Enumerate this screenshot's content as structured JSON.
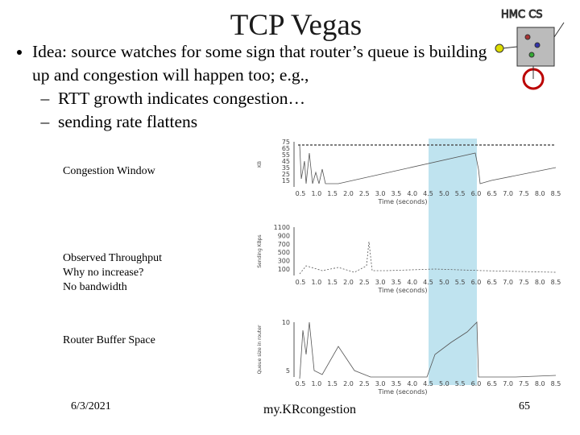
{
  "header": {
    "title": "TCP Vegas"
  },
  "bullets": [
    {
      "text": "Idea: source watches for some sign that router’s queue is building up and congestion will happen too; e.g.,",
      "sub": [
        "RTT growth indicates congestion…",
        "sending rate flattens"
      ]
    }
  ],
  "time_axis": {
    "label": "Time (seconds)",
    "ticks": [
      "0.5",
      "1.0",
      "1.5",
      "2.0",
      "2.5",
      "3.0",
      "3.5",
      "4.0",
      "4.5",
      "5.0",
      "5.5",
      "6.0",
      "6.5",
      "7.0",
      "7.5",
      "8.0",
      "8.5"
    ]
  },
  "panels": [
    {
      "label": [
        "Congestion Window"
      ],
      "y_axis": "KB",
      "yticks": [
        "75",
        "65",
        "55",
        "45",
        "35",
        "25",
        "15"
      ]
    },
    {
      "label": [
        "Observed Throughput",
        "Why no increase?",
        "No bandwidth"
      ],
      "y_axis": "Sending KBps",
      "yticks": [
        "1100",
        "900",
        "700",
        "500",
        "300",
        "100"
      ]
    },
    {
      "label": [
        "Router Buffer Space"
      ],
      "y_axis": "Queue size in router",
      "yticks": [
        "10",
        "5"
      ]
    }
  ],
  "footer": {
    "date": "6/3/2021",
    "center": "my.KRcongestion",
    "page": "65"
  }
}
